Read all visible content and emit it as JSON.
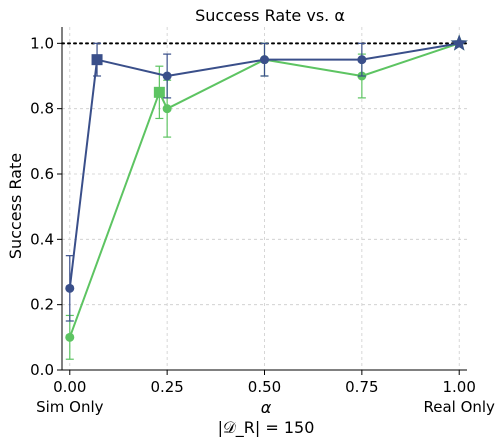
{
  "chart_data": {
    "type": "line",
    "title": "Success Rate vs. α",
    "xlabel": "α",
    "xlabel2": "|𝒟_R| = 150",
    "ylabel": "Success Rate",
    "xlim": [
      -0.02,
      1.02
    ],
    "ylim": [
      0.0,
      1.05
    ],
    "xticks": [
      {
        "value": 0.0,
        "label": "0.00",
        "sublabel": "Sim Only"
      },
      {
        "value": 0.25,
        "label": "0.25",
        "sublabel": ""
      },
      {
        "value": 0.5,
        "label": "0.50",
        "sublabel": ""
      },
      {
        "value": 0.75,
        "label": "0.75",
        "sublabel": ""
      },
      {
        "value": 1.0,
        "label": "1.00",
        "sublabel": "Real Only"
      }
    ],
    "yticks": [
      {
        "value": 0.0,
        "label": "0.0"
      },
      {
        "value": 0.2,
        "label": "0.2"
      },
      {
        "value": 0.4,
        "label": "0.4"
      },
      {
        "value": 0.6,
        "label": "0.6"
      },
      {
        "value": 0.8,
        "label": "0.8"
      },
      {
        "value": 1.0,
        "label": "1.0"
      }
    ],
    "grid": true,
    "reference_line": {
      "y": 1.0,
      "style": "dotted",
      "color": "#000000"
    },
    "series": [
      {
        "color": "#3a4f8a",
        "points": [
          {
            "x": 0.0,
            "y": 0.25,
            "err": 0.1,
            "marker": "circle"
          },
          {
            "x": 0.07,
            "y": 0.95,
            "err": 0.05,
            "marker": "square"
          },
          {
            "x": 0.25,
            "y": 0.9,
            "err": 0.067,
            "marker": "circle"
          },
          {
            "x": 0.5,
            "y": 0.95,
            "err": 0.05,
            "marker": "circle"
          },
          {
            "x": 0.75,
            "y": 0.95,
            "err": 0.05,
            "marker": "circle"
          },
          {
            "x": 1.0,
            "y": 1.0,
            "err": 0,
            "marker": "star"
          }
        ]
      },
      {
        "color": "#5dc462",
        "points": [
          {
            "x": 0.0,
            "y": 0.1,
            "err": 0.067,
            "marker": "circle"
          },
          {
            "x": 0.23,
            "y": 0.85,
            "err": 0.08,
            "marker": "square"
          },
          {
            "x": 0.25,
            "y": 0.8,
            "err": 0.087,
            "marker": "circle"
          },
          {
            "x": 0.5,
            "y": 0.95,
            "err": 0.05,
            "marker": "circle"
          },
          {
            "x": 0.75,
            "y": 0.9,
            "err": 0.067,
            "marker": "circle"
          },
          {
            "x": 1.0,
            "y": 1.0,
            "err": 0,
            "marker": "star"
          }
        ]
      }
    ]
  }
}
